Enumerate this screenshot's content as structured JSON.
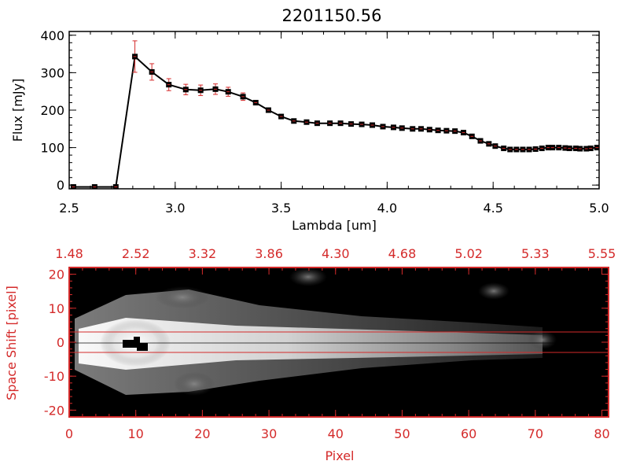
{
  "chart_data": [
    {
      "type": "line",
      "title": "2201150.56",
      "xlabel": "Lambda [um]",
      "ylabel": "Flux [mJy]",
      "xlim": [
        2.5,
        5.0
      ],
      "ylim": [
        -10,
        410
      ],
      "xticks": [
        2.5,
        3.0,
        3.5,
        4.0,
        4.5,
        5.0
      ],
      "xtick_labels": [
        "2.5",
        "3.0",
        "3.5",
        "4.0",
        "4.5",
        "5.0"
      ],
      "yticks": [
        0,
        100,
        200,
        300,
        400
      ],
      "ytick_labels": [
        "0",
        "100",
        "200",
        "300",
        "400"
      ],
      "line_color": "#000000",
      "marker_color": "#000000",
      "errorbar_color": "#d42a2a",
      "series": [
        {
          "x": [
            2.52,
            2.62,
            2.72,
            2.81,
            2.89,
            2.97,
            3.05,
            3.12,
            3.19,
            3.25,
            3.32,
            3.38,
            3.44,
            3.5,
            3.56,
            3.62,
            3.67,
            3.73,
            3.78,
            3.83,
            3.88,
            3.93,
            3.98,
            4.03,
            4.07,
            4.12,
            4.16,
            4.2,
            4.24,
            4.28,
            4.32,
            4.36,
            4.4,
            4.44,
            4.48,
            4.51,
            4.55,
            4.58,
            4.61,
            4.64,
            4.67,
            4.7,
            4.73,
            4.76,
            4.78,
            4.81,
            4.84,
            4.86,
            4.89,
            4.91,
            4.94,
            4.96,
            4.99
          ],
          "y": [
            -5,
            -5,
            -5,
            343,
            302,
            268,
            255,
            253,
            256,
            249,
            236,
            220,
            200,
            183,
            171,
            168,
            165,
            165,
            165,
            163,
            162,
            160,
            156,
            154,
            152,
            150,
            150,
            148,
            146,
            145,
            144,
            140,
            130,
            118,
            110,
            104,
            98,
            95,
            95,
            95,
            95,
            96,
            98,
            100,
            100,
            100,
            99,
            98,
            98,
            97,
            97,
            98,
            100
          ],
          "yerr": [
            0,
            0,
            0,
            42,
            22,
            16,
            14,
            14,
            14,
            12,
            10,
            6,
            4,
            3,
            3,
            3,
            3,
            3,
            3,
            3,
            3,
            3,
            3,
            3,
            3,
            3,
            3,
            3,
            3,
            3,
            3,
            3,
            3,
            3,
            3,
            3,
            3,
            3,
            3,
            3,
            3,
            3,
            3,
            3,
            3,
            3,
            3,
            3,
            3,
            3,
            3,
            3,
            3
          ]
        }
      ]
    },
    {
      "type": "heatmap",
      "xlabel": "Pixel",
      "ylabel": "Space Shift [pixel]",
      "xlim": [
        0,
        81
      ],
      "ylim": [
        -22,
        22
      ],
      "xticks": [
        0,
        10,
        20,
        30,
        40,
        50,
        60,
        70,
        80
      ],
      "xtick_labels": [
        "0",
        "10",
        "20",
        "30",
        "40",
        "50",
        "60",
        "70",
        "80"
      ],
      "yticks": [
        -20,
        -10,
        0,
        10,
        20
      ],
      "ytick_labels": [
        "-20",
        "-10",
        "0",
        "10",
        "20"
      ],
      "top_axis_labels": [
        "1.48",
        "2.52",
        "3.32",
        "3.86",
        "4.30",
        "4.68",
        "5.02",
        "5.33",
        "5.55"
      ],
      "extraction_band": [
        -3,
        3
      ],
      "frame_color": "#d42a2a",
      "colormap": "grayscale"
    }
  ]
}
